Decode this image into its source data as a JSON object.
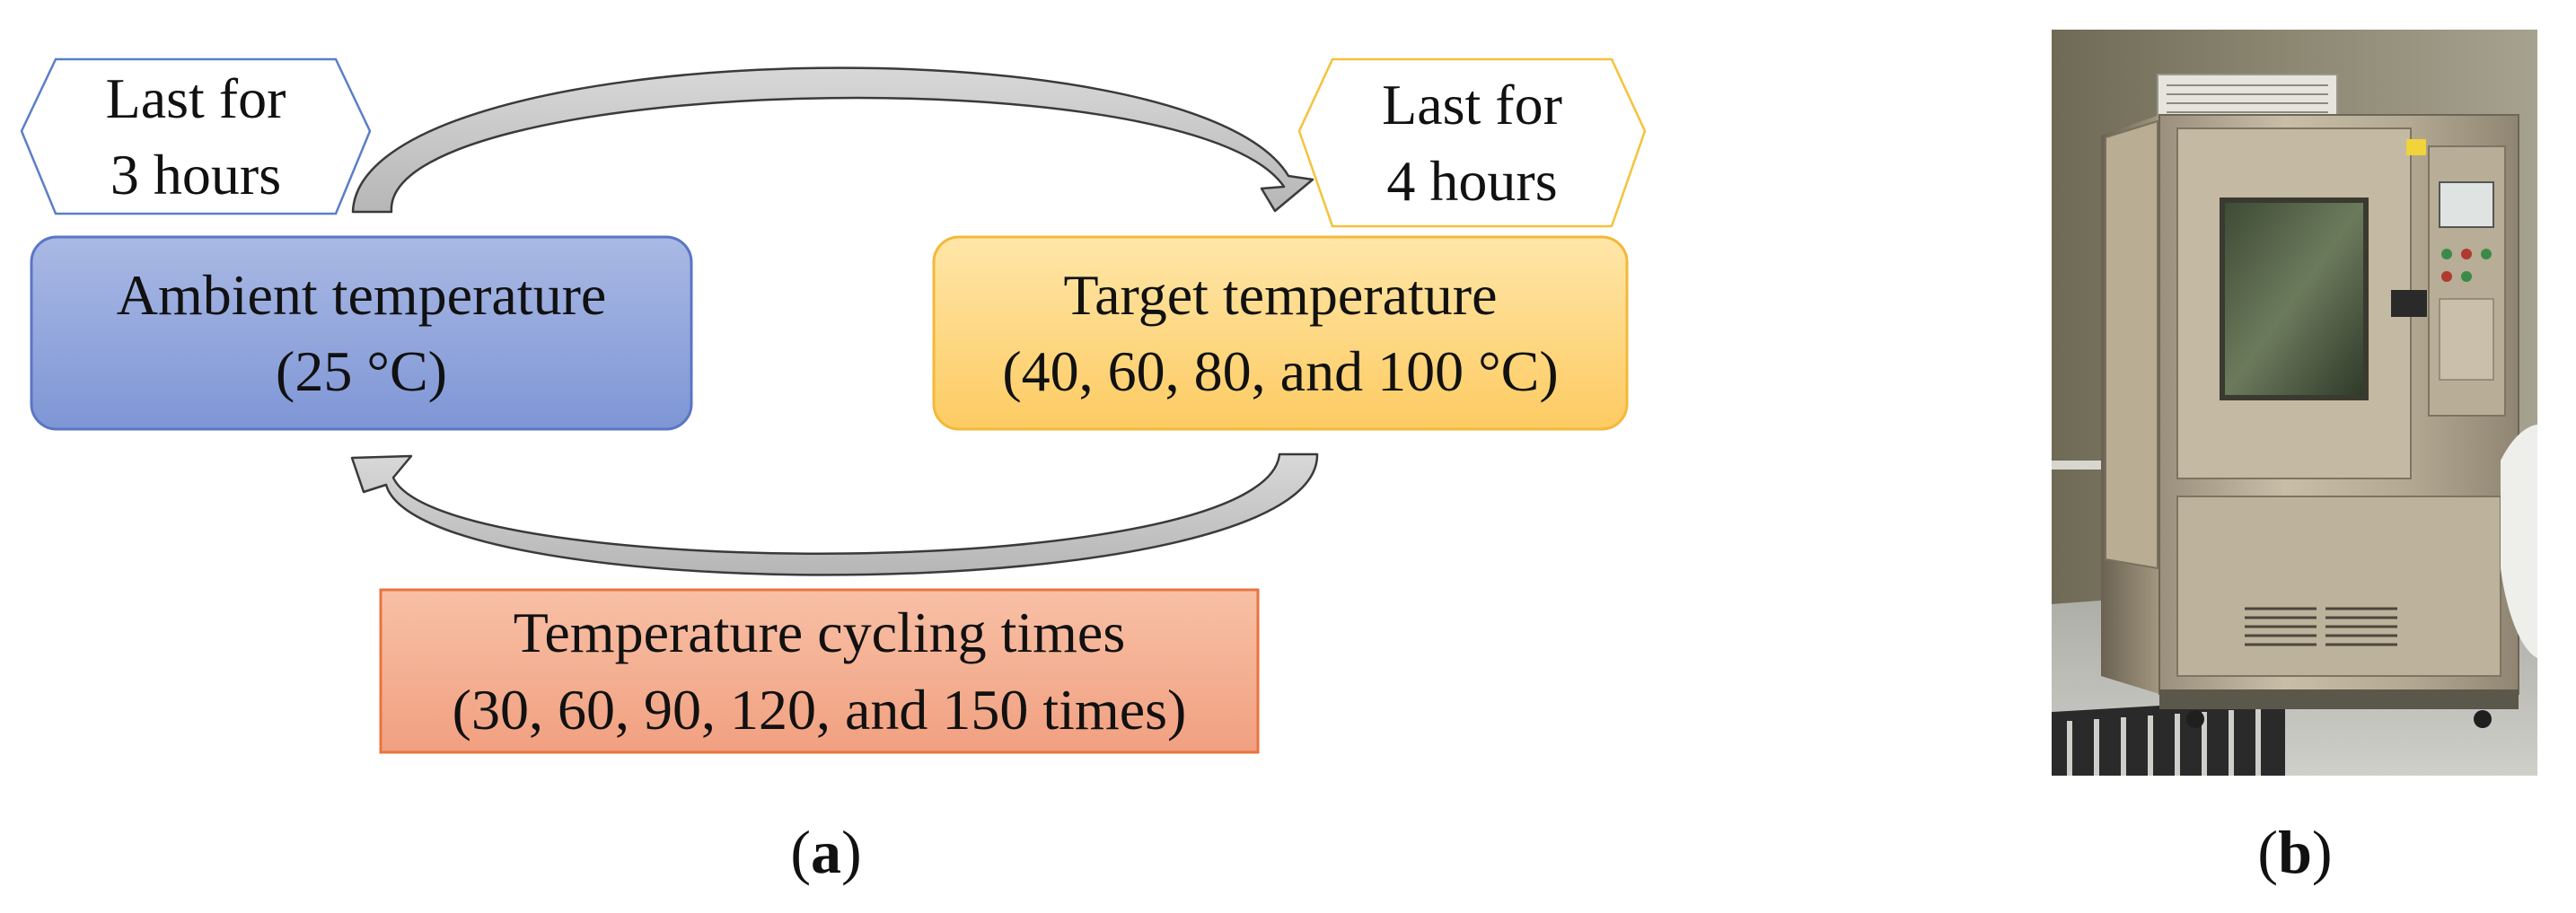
{
  "panel_a": {
    "ambient_node": {
      "title": "Ambient temperature",
      "value": "(25 °C)"
    },
    "target_node": {
      "title": "Target temperature",
      "value": "(40, 60, 80, and 100 °C)"
    },
    "cycling_node": {
      "title": "Temperature cycling times",
      "value": "(30, 60, 90, 120, and 150 times)"
    },
    "hold_ambient": {
      "line1": "Last for",
      "line2": "3 hours"
    },
    "hold_target": {
      "line1": "Last for",
      "line2": "4 hours"
    },
    "caption": {
      "open": "(",
      "letter": "a",
      "close": ")"
    }
  },
  "panel_b": {
    "caption": {
      "open": "(",
      "letter": "b",
      "close": ")"
    }
  },
  "colors": {
    "ambient_fill_top": "#a9b9e4",
    "ambient_fill_bottom": "#7f96d6",
    "ambient_border": "#5a76c4",
    "target_fill_top": "#ffe6a8",
    "target_fill_bottom": "#fdcb62",
    "target_border": "#f4b83a",
    "cycling_fill_top": "#f8c0a6",
    "cycling_fill_bottom": "#f1a080",
    "cycling_border": "#e8743f",
    "hex_left_border": "#5b7fc7",
    "hex_right_border": "#f6c23a",
    "arrow_fill": "#c9c9c9",
    "arrow_border": "#3a3a3a"
  }
}
